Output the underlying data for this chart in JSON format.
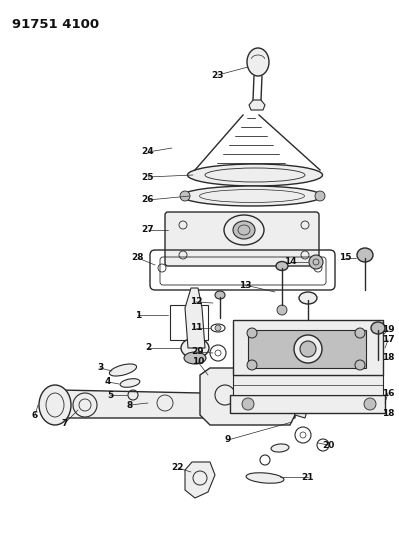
{
  "title": "91751 4100",
  "bg_color": "#ffffff",
  "fig_width": 3.99,
  "fig_height": 5.33,
  "dpi": 100,
  "lc": "#2a2a2a",
  "lc_light": "#888888",
  "label_fontsize": 6.5,
  "label_fontweight": "bold",
  "label_color": "#111111",
  "title_fontsize": 9.5
}
